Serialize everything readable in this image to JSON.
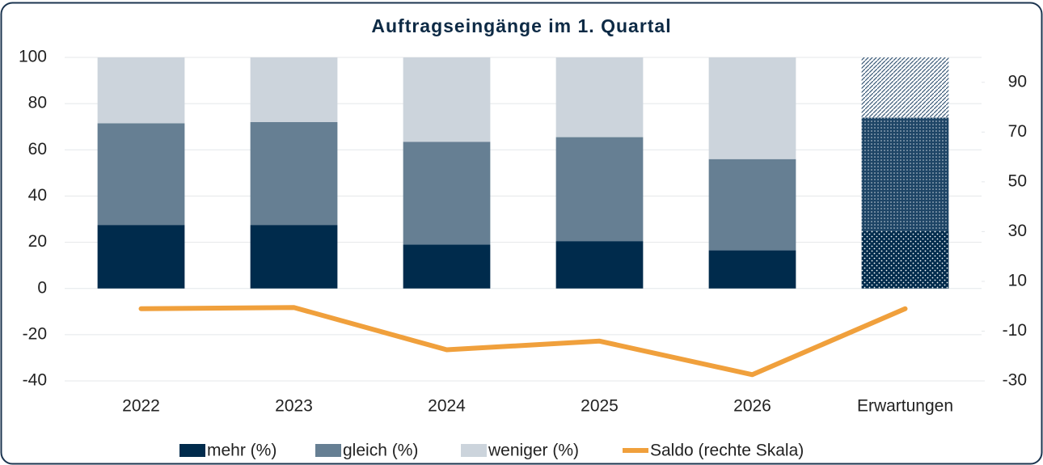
{
  "chart_data": {
    "type": "bar",
    "stacked": true,
    "title": "Auftragseingänge im 1. Quartal",
    "categories": [
      "2022",
      "2023",
      "2024",
      "2025",
      "2026",
      "Erwartungen"
    ],
    "series": [
      {
        "name": "mehr (%)",
        "color": "#002b4c",
        "values": [
          27.5,
          27.5,
          19,
          20.5,
          16.5,
          25
        ]
      },
      {
        "name": "gleich (%)",
        "color": "#667f93",
        "values": [
          44,
          44.5,
          44.5,
          45,
          39.5,
          49
        ]
      },
      {
        "name": "weniger (%)",
        "color": "#ccd4dc",
        "values": [
          28.5,
          28,
          36.5,
          34.5,
          44,
          26
        ]
      },
      {
        "name": "Saldo (rechte Skala)",
        "color": "#f0a03c",
        "type": "line",
        "axis": "y2",
        "values": [
          -1,
          -0.5,
          -17.5,
          -14,
          -27.5,
          -1
        ]
      }
    ],
    "ylim": [
      -40,
      100
    ],
    "yticks": [
      -40,
      -20,
      0,
      20,
      40,
      60,
      80,
      100
    ],
    "y2lim": [
      -30,
      100
    ],
    "y2ticks": [
      -30,
      -10,
      10,
      30,
      50,
      70,
      90
    ],
    "grid": true,
    "legend": "bottom"
  }
}
